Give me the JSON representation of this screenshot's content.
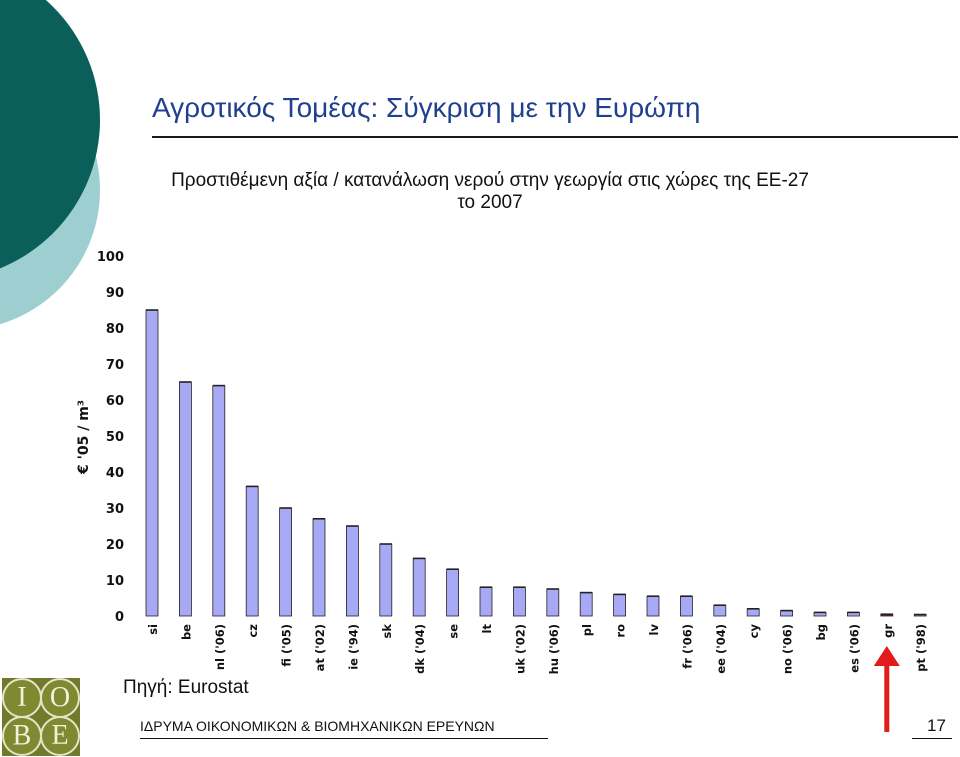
{
  "slide": {
    "title": "Αγροτικός Τομέας: Σύγκριση με την Ευρώπη",
    "subtitle_line1": "Προστιθέμενη αξία / κατανάλωση νερού στην γεωργία στις χώρες της ΕΕ-27",
    "subtitle_line2": "το 2007",
    "source": "Πηγή: Eurostat",
    "footer": "ΙΔΡΥΜΑ ΟΙΚΟΝΟΜΙΚΩΝ & ΒΙΟΜΗΧΑΝΙΚΩΝ ΕΡΕΥΝΩΝ",
    "page_number": "17"
  },
  "logo": {
    "letters": [
      "Ι",
      "Ο",
      "Β",
      "Ε"
    ]
  },
  "colors": {
    "bar_fill": "#a7a9f5",
    "bar_stroke": "#222222",
    "highlight_bar": "#8b1a1a",
    "arrow": "#e21b1b",
    "title": "#1f3f8f",
    "deco_dark": "#0b5f5a",
    "deco_light": "#9ecfd0"
  },
  "chart_data": {
    "type": "bar",
    "ylabel": "€ '05 / m³",
    "ylim": [
      0,
      100
    ],
    "yticks": [
      0,
      10,
      20,
      30,
      40,
      50,
      60,
      70,
      80,
      90,
      100
    ],
    "categories": [
      "si",
      "be",
      "nl ('06)",
      "cz",
      "fi ('05)",
      "at ('02)",
      "ie ('94)",
      "sk",
      "dk ('04)",
      "se",
      "lt",
      "uk ('02)",
      "hu ('06)",
      "pl",
      "ro",
      "lv",
      "fr ('06)",
      "ee ('04)",
      "cy",
      "no ('06)",
      "bg",
      "es ('06)",
      "gr",
      "pt ('98)"
    ],
    "values": [
      85,
      65,
      64,
      36,
      30,
      27,
      25,
      20,
      16,
      13,
      8,
      8,
      7.5,
      6.5,
      6,
      5.5,
      5.5,
      3,
      2,
      1.5,
      1,
      1,
      0.5,
      0.3
    ],
    "highlight": "gr",
    "grid": false,
    "legend": "none"
  }
}
